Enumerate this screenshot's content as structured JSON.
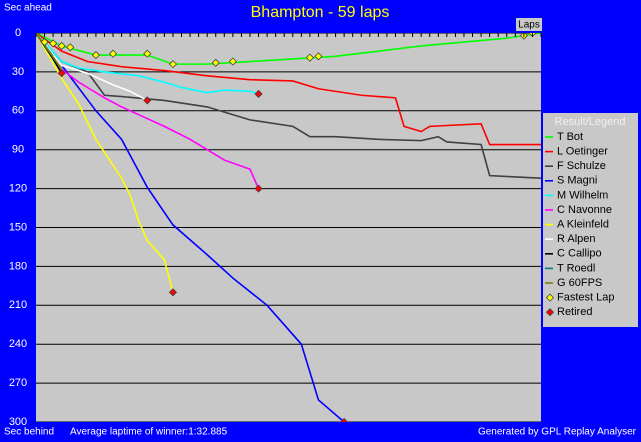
{
  "chart_data": {
    "type": "line",
    "title": "Bhampton - 59 laps",
    "ylabel_top": "Sec ahead",
    "ylabel_bottom": "Sec behind",
    "xlabel": "Laps",
    "footer_left": "Average laptime of winner:1:32.885",
    "footer_right": "Generated by GPL Replay Analyser",
    "legend_title": "Result/Legend",
    "legend": "right",
    "grid": true,
    "xlim": [
      0,
      59
    ],
    "xticks": [
      0,
      1,
      2,
      3,
      4,
      5,
      6,
      7,
      8,
      9,
      10,
      11,
      12,
      13,
      14,
      15,
      16,
      17,
      18,
      19,
      20,
      21,
      22,
      23,
      24,
      25,
      26,
      27,
      28,
      29,
      30,
      31,
      32,
      33,
      34,
      35,
      36,
      37,
      38,
      39,
      40,
      41,
      42,
      43,
      44,
      45,
      46,
      47,
      48,
      49,
      50,
      51,
      52,
      53,
      54,
      55,
      56,
      57,
      58,
      59
    ],
    "ylim": [
      300,
      0
    ],
    "yticks": [
      0,
      30,
      60,
      90,
      120,
      150,
      180,
      210,
      240,
      270,
      300
    ],
    "series": [
      {
        "name": "T Bot",
        "color": "#00ff00",
        "x": [
          0,
          3,
          7,
          13,
          16,
          20,
          25,
          30,
          35,
          40,
          45,
          50,
          55,
          59
        ],
        "values": [
          0,
          10,
          17,
          17,
          24,
          24,
          22,
          20,
          18,
          14,
          10,
          7,
          4,
          0
        ]
      },
      {
        "name": "L Oetinger",
        "color": "#ff0000",
        "x": [
          0,
          3,
          6,
          10,
          15,
          20,
          25,
          30,
          33,
          38,
          42,
          43,
          45,
          46,
          52,
          53,
          59
        ],
        "values": [
          0,
          14,
          22,
          26,
          29,
          33,
          36,
          37,
          43,
          48,
          50,
          72,
          76,
          72,
          70,
          86,
          86
        ]
      },
      {
        "name": "F Schulze",
        "color": "#404040",
        "x": [
          0,
          3,
          6,
          8,
          10,
          15,
          20,
          25,
          30,
          32,
          35,
          40,
          45,
          47,
          48,
          52,
          53,
          59
        ],
        "values": [
          0,
          22,
          30,
          48,
          49,
          52,
          57,
          67,
          72,
          80,
          80,
          82,
          83,
          80,
          84,
          86,
          110,
          112
        ]
      },
      {
        "name": "S Magni",
        "color": "#0000ff",
        "x": [
          0,
          3,
          7,
          10,
          13,
          16,
          20,
          23,
          27,
          31,
          33,
          36
        ],
        "values": [
          0,
          25,
          60,
          82,
          119,
          148,
          171,
          189,
          210,
          240,
          283,
          300
        ]
      },
      {
        "name": "M Wilhelm",
        "color": "#00ffff",
        "x": [
          0,
          3,
          5,
          8,
          12,
          15,
          17,
          20,
          22,
          25,
          26
        ],
        "values": [
          0,
          22,
          27,
          30,
          33,
          38,
          42,
          46,
          44,
          45,
          47
        ]
      },
      {
        "name": "C Navonne",
        "color": "#ff00ff",
        "x": [
          0,
          3,
          5,
          8,
          10,
          12,
          15,
          18,
          20,
          22,
          25,
          26
        ],
        "values": [
          0,
          28,
          38,
          50,
          57,
          63,
          72,
          82,
          90,
          98,
          105,
          120
        ]
      },
      {
        "name": "A Kleinfeld",
        "color": "#ffff00",
        "x": [
          0,
          3,
          5,
          7,
          8,
          10,
          11,
          12,
          13,
          15,
          16
        ],
        "values": [
          0,
          35,
          55,
          82,
          92,
          112,
          125,
          145,
          160,
          175,
          200
        ]
      },
      {
        "name": "R Alpen",
        "color": "#ffffff",
        "x": [
          0,
          3,
          6,
          9,
          11,
          13
        ],
        "values": [
          0,
          25,
          31,
          40,
          45,
          52
        ]
      },
      {
        "name": "C Callipo",
        "color": "#000000",
        "x": [
          0,
          2,
          3
        ],
        "values": [
          0,
          20,
          31
        ]
      },
      {
        "name": "T Roedl",
        "color": "#008080",
        "x": [
          0,
          2
        ],
        "values": [
          0,
          18
        ]
      },
      {
        "name": "G 60FPS",
        "color": "#808000",
        "x": [
          0,
          3
        ],
        "values": [
          0,
          28
        ]
      },
      {
        "name": "Fastest Lap",
        "color": "#ffff00",
        "marker": "diamond",
        "x": [
          1,
          2,
          3,
          4,
          7,
          9,
          13,
          16,
          21,
          23,
          32,
          33,
          57,
          58
        ],
        "values": [
          7,
          8,
          10,
          11,
          17,
          16,
          16,
          24,
          23,
          22,
          19,
          18,
          2,
          0
        ]
      },
      {
        "name": "Retired",
        "color": "#ff0000",
        "marker": "diamond",
        "x": [
          3,
          13,
          16,
          26,
          26,
          36
        ],
        "values": [
          31,
          52,
          200,
          47,
          120,
          300
        ]
      }
    ]
  }
}
